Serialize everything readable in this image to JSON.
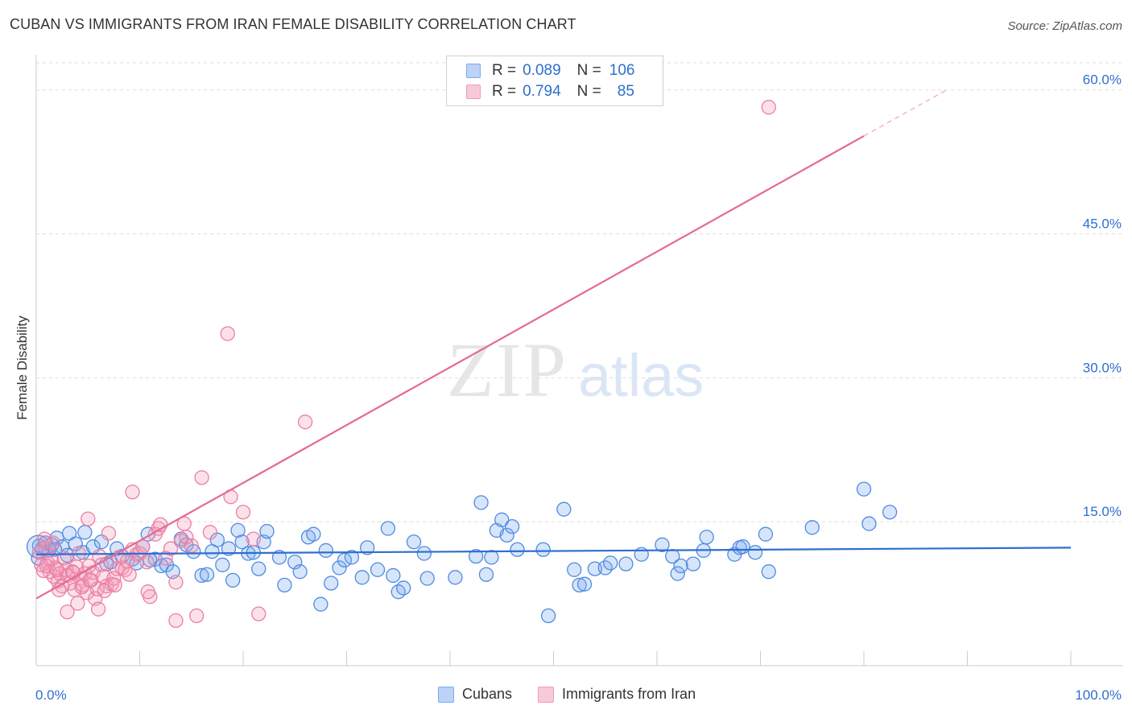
{
  "title": "CUBAN VS IMMIGRANTS FROM IRAN FEMALE DISABILITY CORRELATION CHART",
  "source": "Source: ZipAtlas.com",
  "watermark": {
    "zip": "ZIP",
    "atlas": "atlas"
  },
  "legend": {
    "rows": [
      {
        "r_label": "R =",
        "r_value": "0.089",
        "n_label": "N =",
        "n_value": "106",
        "color": "#7aaaf0"
      },
      {
        "r_label": "R =",
        "r_value": "0.794",
        "n_label": "N =",
        "n_value": "85",
        "color": "#f29ab8"
      }
    ]
  },
  "bottom_legend": {
    "cubans": "Cubans",
    "iran": "Immigrants from Iran"
  },
  "chart_data": {
    "type": "scatter",
    "xlabel": "",
    "ylabel": "Female Disability",
    "xlim": [
      0,
      100
    ],
    "ylim": [
      0,
      63.5
    ],
    "x_tick_labels": [
      "0.0%",
      "100.0%"
    ],
    "y_ticks": [
      15,
      30,
      45,
      60
    ],
    "y_tick_labels": [
      "15.0%",
      "30.0%",
      "45.0%",
      "60.0%"
    ],
    "grid": "horizontal dashed",
    "colors": {
      "cubans": "#4f8be0",
      "iran": "#ec7fa3",
      "cubans_line": "#2d6fd0",
      "iran_line": "#e46a92",
      "tick_text": "#2d6fd0"
    },
    "series": [
      {
        "name": "Cubans",
        "trend": {
          "x0": 0,
          "y0": 11.6,
          "x1": 100,
          "y1": 12.3
        },
        "points": [
          [
            0.3,
            12.5
          ],
          [
            0.6,
            12.2
          ],
          [
            0.9,
            12.8
          ],
          [
            1.2,
            12.0
          ],
          [
            1.5,
            12.6
          ],
          [
            2.0,
            13.3
          ],
          [
            2.5,
            12.4
          ],
          [
            3.2,
            13.8
          ],
          [
            3.8,
            12.7
          ],
          [
            4.5,
            11.8
          ],
          [
            4.7,
            13.9
          ],
          [
            5.5,
            12.4
          ],
          [
            6.3,
            12.9
          ],
          [
            7.2,
            10.8
          ],
          [
            7.8,
            12.2
          ],
          [
            8.3,
            11.4
          ],
          [
            9.3,
            11.1
          ],
          [
            9.7,
            10.7
          ],
          [
            10.3,
            12.4
          ],
          [
            10.8,
            13.7
          ],
          [
            11.5,
            11.1
          ],
          [
            12.1,
            10.4
          ],
          [
            12.6,
            10.5
          ],
          [
            13.2,
            9.8
          ],
          [
            14.0,
            13.2
          ],
          [
            14.5,
            12.6
          ],
          [
            15.2,
            11.9
          ],
          [
            16.0,
            9.4
          ],
          [
            16.5,
            9.5
          ],
          [
            17.0,
            11.9
          ],
          [
            17.5,
            13.1
          ],
          [
            18.0,
            10.5
          ],
          [
            18.6,
            12.2
          ],
          [
            19.0,
            8.9
          ],
          [
            19.5,
            14.1
          ],
          [
            19.9,
            12.9
          ],
          [
            20.5,
            11.7
          ],
          [
            21.0,
            11.8
          ],
          [
            21.5,
            10.1
          ],
          [
            22.0,
            12.9
          ],
          [
            22.3,
            14.0
          ],
          [
            23.5,
            11.3
          ],
          [
            24.0,
            8.4
          ],
          [
            25.0,
            10.8
          ],
          [
            25.5,
            9.8
          ],
          [
            26.3,
            13.4
          ],
          [
            26.8,
            13.7
          ],
          [
            27.5,
            6.4
          ],
          [
            28.0,
            12.0
          ],
          [
            28.5,
            8.6
          ],
          [
            29.3,
            10.2
          ],
          [
            29.8,
            11.0
          ],
          [
            30.5,
            11.3
          ],
          [
            31.5,
            9.2
          ],
          [
            32.0,
            12.3
          ],
          [
            33.0,
            10.0
          ],
          [
            34.0,
            14.3
          ],
          [
            34.5,
            9.4
          ],
          [
            35.0,
            7.7
          ],
          [
            35.5,
            8.1
          ],
          [
            36.5,
            12.9
          ],
          [
            37.5,
            11.7
          ],
          [
            37.8,
            9.1
          ],
          [
            40.5,
            9.2
          ],
          [
            42.5,
            11.4
          ],
          [
            43.0,
            17.0
          ],
          [
            43.5,
            9.5
          ],
          [
            44.0,
            11.3
          ],
          [
            44.5,
            14.1
          ],
          [
            45.0,
            15.2
          ],
          [
            45.5,
            13.6
          ],
          [
            46.0,
            14.5
          ],
          [
            46.5,
            12.1
          ],
          [
            49.0,
            12.1
          ],
          [
            49.5,
            5.2
          ],
          [
            51.0,
            16.3
          ],
          [
            52.0,
            10.0
          ],
          [
            52.5,
            8.4
          ],
          [
            53.0,
            8.5
          ],
          [
            54.0,
            10.1
          ],
          [
            55.0,
            10.2
          ],
          [
            55.5,
            10.7
          ],
          [
            57.0,
            10.6
          ],
          [
            58.5,
            11.6
          ],
          [
            60.5,
            12.6
          ],
          [
            61.5,
            11.4
          ],
          [
            62.0,
            9.6
          ],
          [
            62.3,
            10.4
          ],
          [
            63.5,
            10.6
          ],
          [
            64.5,
            12.0
          ],
          [
            64.8,
            13.4
          ],
          [
            67.5,
            11.6
          ],
          [
            68.0,
            12.3
          ],
          [
            68.3,
            12.4
          ],
          [
            69.5,
            11.8
          ],
          [
            70.5,
            13.7
          ],
          [
            70.8,
            9.8
          ],
          [
            75.0,
            14.4
          ],
          [
            80.0,
            18.4
          ],
          [
            80.5,
            14.8
          ],
          [
            82.5,
            16.0
          ],
          [
            0.2,
            11.2
          ],
          [
            1.8,
            12.1
          ],
          [
            3.0,
            11.5
          ],
          [
            6.8,
            10.6
          ],
          [
            11.0,
            11.0
          ]
        ]
      },
      {
        "name": "Immigrants from Iran",
        "trend": {
          "x0": 0,
          "y0": 7.0,
          "x1": 80,
          "y1": 55.2,
          "dashed_to_x": 88,
          "dashed_to_y": 60.0
        },
        "points": [
          [
            0.3,
            11.8
          ],
          [
            0.5,
            10.5
          ],
          [
            0.7,
            9.9
          ],
          [
            0.9,
            12.3
          ],
          [
            1.1,
            10.7
          ],
          [
            1.3,
            9.8
          ],
          [
            1.5,
            11.1
          ],
          [
            1.7,
            9.3
          ],
          [
            1.9,
            10.2
          ],
          [
            2.1,
            8.8
          ],
          [
            2.3,
            9.6
          ],
          [
            2.5,
            8.3
          ],
          [
            2.7,
            11.2
          ],
          [
            2.9,
            10.0
          ],
          [
            3.1,
            9.4
          ],
          [
            3.3,
            8.6
          ],
          [
            3.5,
            9.8
          ],
          [
            3.7,
            7.9
          ],
          [
            3.9,
            10.3
          ],
          [
            4.1,
            11.7
          ],
          [
            4.3,
            9.1
          ],
          [
            4.5,
            8.4
          ],
          [
            4.7,
            9.6
          ],
          [
            4.9,
            7.6
          ],
          [
            5.1,
            10.4
          ],
          [
            5.3,
            8.9
          ],
          [
            5.5,
            9.7
          ],
          [
            5.7,
            7.0
          ],
          [
            5.9,
            8.0
          ],
          [
            6.1,
            11.4
          ],
          [
            6.3,
            10.5
          ],
          [
            6.5,
            9.3
          ],
          [
            6.8,
            8.3
          ],
          [
            7.0,
            13.8
          ],
          [
            7.3,
            8.5
          ],
          [
            7.5,
            9.1
          ],
          [
            7.8,
            10.1
          ],
          [
            8.0,
            11.3
          ],
          [
            8.3,
            10.2
          ],
          [
            8.6,
            10.0
          ],
          [
            9.0,
            9.5
          ],
          [
            9.3,
            12.1
          ],
          [
            9.7,
            11.6
          ],
          [
            10.0,
            11.7
          ],
          [
            10.3,
            12.4
          ],
          [
            10.7,
            10.8
          ],
          [
            11.0,
            7.2
          ],
          [
            11.5,
            13.7
          ],
          [
            11.8,
            14.3
          ],
          [
            12.0,
            14.7
          ],
          [
            12.5,
            11.2
          ],
          [
            13.0,
            12.2
          ],
          [
            13.5,
            8.7
          ],
          [
            14.0,
            13.0
          ],
          [
            14.3,
            14.8
          ],
          [
            14.5,
            13.4
          ],
          [
            15.0,
            12.5
          ],
          [
            15.5,
            5.2
          ],
          [
            16.0,
            19.6
          ],
          [
            16.8,
            13.9
          ],
          [
            18.5,
            34.6
          ],
          [
            18.8,
            17.6
          ],
          [
            20.0,
            16.0
          ],
          [
            21.0,
            13.2
          ],
          [
            21.5,
            5.4
          ],
          [
            26.0,
            25.4
          ],
          [
            9.3,
            18.1
          ],
          [
            5.0,
            15.3
          ],
          [
            2.2,
            7.9
          ],
          [
            3.0,
            5.6
          ],
          [
            4.0,
            6.5
          ],
          [
            6.0,
            5.9
          ],
          [
            13.5,
            4.7
          ],
          [
            10.8,
            7.7
          ],
          [
            1.0,
            10.4
          ],
          [
            2.0,
            10.0
          ],
          [
            3.6,
            9.7
          ],
          [
            4.4,
            8.2
          ],
          [
            5.2,
            8.9
          ],
          [
            6.6,
            7.8
          ],
          [
            7.6,
            8.4
          ],
          [
            8.8,
            10.9
          ],
          [
            1.6,
            12.8
          ],
          [
            0.8,
            13.2
          ],
          [
            70.8,
            58.2
          ]
        ]
      }
    ]
  }
}
